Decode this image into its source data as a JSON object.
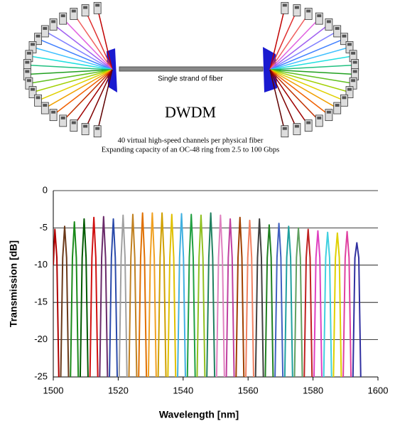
{
  "diagram": {
    "fiber_label": "Single strand of fiber",
    "title": "DWDM",
    "caption_line1": "40 virtual high-speed channels per physical fiber",
    "caption_line2": "Expanding capacity of an OC-48 ring from 2.5 to 100 Gbps"
  },
  "chart_data": {
    "type": "line",
    "x_label": "Wavelength [nm]",
    "y_label": "Transmission [dB]",
    "xlim": [
      1500,
      1600
    ],
    "xticks": [
      1500,
      1520,
      1540,
      1560,
      1580,
      1600
    ],
    "ylim": [
      -25,
      0
    ],
    "yticks": [
      0,
      -5,
      -10,
      -15,
      -20,
      -25
    ],
    "grid": true,
    "series": [
      {
        "color": "#b00000",
        "x": [
          1500,
          1500.5,
          1501.1,
          1501.7
        ],
        "values": [
          -10,
          -5.2,
          -9,
          -25
        ]
      },
      {
        "color": "#6b3a1a",
        "x": [
          1502.3,
          1502.9,
          1503.5,
          1504.1,
          1504.7
        ],
        "values": [
          -25,
          -9,
          -4.8,
          -9,
          -25
        ]
      },
      {
        "color": "#1a8a1a",
        "x": [
          1505.3,
          1505.9,
          1506.5,
          1507.1,
          1507.7
        ],
        "values": [
          -25,
          -9,
          -4.2,
          -9,
          -25
        ]
      },
      {
        "color": "#005a00",
        "x": [
          1508.3,
          1508.9,
          1509.5,
          1510.1,
          1510.7
        ],
        "values": [
          -25,
          -9,
          -3.8,
          -9,
          -25
        ]
      },
      {
        "color": "#d01010",
        "x": [
          1511.3,
          1511.9,
          1512.5,
          1513.1,
          1513.7
        ],
        "values": [
          -25,
          -9,
          -3.6,
          -9,
          -25
        ]
      },
      {
        "color": "#6a2a6a",
        "x": [
          1514.3,
          1514.9,
          1515.5,
          1516.1,
          1516.7
        ],
        "values": [
          -25,
          -9,
          -3.5,
          -9,
          -25
        ]
      },
      {
        "color": "#2a4aaa",
        "x": [
          1517.3,
          1517.9,
          1518.5,
          1519.1,
          1519.7
        ],
        "values": [
          -25,
          -9,
          -3.8,
          -9,
          -25
        ]
      },
      {
        "color": "#a0a0a0",
        "x": [
          1520.3,
          1520.9,
          1521.5,
          1522.1,
          1522.7
        ],
        "values": [
          -25,
          -9,
          -3.3,
          -9,
          -25
        ]
      },
      {
        "color": "#c08020",
        "x": [
          1523.3,
          1523.9,
          1524.5,
          1525.1,
          1525.7
        ],
        "values": [
          -25,
          -9,
          -3.2,
          -9,
          -25
        ]
      },
      {
        "color": "#e07000",
        "x": [
          1526.3,
          1526.9,
          1527.5,
          1528.1,
          1528.7
        ],
        "values": [
          -25,
          -9,
          -3,
          -9,
          -25
        ]
      },
      {
        "color": "#f0a020",
        "x": [
          1529.3,
          1529.9,
          1530.5,
          1531.1,
          1531.7
        ],
        "values": [
          -25,
          -9,
          -3,
          -9,
          -25
        ]
      },
      {
        "color": "#d0a000",
        "x": [
          1532.3,
          1532.9,
          1533.5,
          1534.1,
          1534.7
        ],
        "values": [
          -25,
          -9,
          -3,
          -9,
          -25
        ]
      },
      {
        "color": "#e0c000",
        "x": [
          1535.3,
          1535.9,
          1536.5,
          1537.1,
          1537.7
        ],
        "values": [
          -25,
          -9,
          -3.2,
          -9,
          -25
        ]
      },
      {
        "color": "#40b0e0",
        "x": [
          1538.3,
          1538.9,
          1539.5,
          1540.1,
          1540.7
        ],
        "values": [
          -25,
          -9,
          -3.1,
          -9,
          -25
        ]
      },
      {
        "color": "#20a040",
        "x": [
          1541.3,
          1541.9,
          1542.5,
          1543.1,
          1543.7
        ],
        "values": [
          -25,
          -9,
          -3.2,
          -9,
          -25
        ]
      },
      {
        "color": "#90c020",
        "x": [
          1544.3,
          1544.9,
          1545.5,
          1546.1,
          1546.7
        ],
        "values": [
          -25,
          -9,
          -3.3,
          -9,
          -25
        ]
      },
      {
        "color": "#208060",
        "x": [
          1547.3,
          1547.9,
          1548.5,
          1549.1,
          1549.7
        ],
        "values": [
          -25,
          -9,
          -3,
          -9,
          -25
        ]
      },
      {
        "color": "#e080c0",
        "x": [
          1550.3,
          1550.9,
          1551.5,
          1552.1,
          1552.7
        ],
        "values": [
          -25,
          -9,
          -3.3,
          -9,
          -25
        ]
      },
      {
        "color": "#c040a0",
        "x": [
          1553.3,
          1553.9,
          1554.5,
          1555.1,
          1555.7
        ],
        "values": [
          -25,
          -9,
          -3.8,
          -9,
          -25
        ]
      },
      {
        "color": "#a04000",
        "x": [
          1556.3,
          1556.9,
          1557.5,
          1558.1,
          1558.7
        ],
        "values": [
          -25,
          -9,
          -3.6,
          -9,
          -25
        ]
      },
      {
        "color": "#f08060",
        "x": [
          1559.3,
          1559.9,
          1560.5,
          1561.1,
          1561.7
        ],
        "values": [
          -25,
          -9,
          -4,
          -9,
          -25
        ]
      },
      {
        "color": "#404040",
        "x": [
          1562.3,
          1562.9,
          1563.5,
          1564.1,
          1564.7
        ],
        "values": [
          -25,
          -9,
          -3.8,
          -9,
          -25
        ]
      },
      {
        "color": "#208020",
        "x": [
          1565.3,
          1565.9,
          1566.5,
          1567.1,
          1567.7
        ],
        "values": [
          -25,
          -9,
          -4.6,
          -9,
          -25
        ]
      },
      {
        "color": "#4060c0",
        "x": [
          1568.3,
          1568.9,
          1569.5,
          1570.1,
          1570.7
        ],
        "values": [
          -25,
          -9,
          -4.4,
          -9,
          -25
        ]
      },
      {
        "color": "#20a0a0",
        "x": [
          1571.3,
          1571.9,
          1572.5,
          1573.1,
          1573.7
        ],
        "values": [
          -25,
          -9,
          -4.8,
          -9,
          -25
        ]
      },
      {
        "color": "#60a060",
        "x": [
          1574.3,
          1574.9,
          1575.5,
          1576.1,
          1576.7
        ],
        "values": [
          -25,
          -9,
          -5,
          -9,
          -25
        ]
      },
      {
        "color": "#c02020",
        "x": [
          1577.3,
          1577.9,
          1578.5,
          1579.1,
          1579.7
        ],
        "values": [
          -25,
          -9,
          -5.2,
          -9,
          -25
        ]
      },
      {
        "color": "#e040c0",
        "x": [
          1580.3,
          1580.9,
          1581.5,
          1582.1,
          1582.7
        ],
        "values": [
          -25,
          -9,
          -5.4,
          -9,
          -25
        ]
      },
      {
        "color": "#40d0e0",
        "x": [
          1583.3,
          1583.9,
          1584.5,
          1585.1,
          1585.7
        ],
        "values": [
          -25,
          -9,
          -5.6,
          -9,
          -25
        ]
      },
      {
        "color": "#e0d000",
        "x": [
          1586.3,
          1586.9,
          1587.5,
          1588.1,
          1588.7
        ],
        "values": [
          -25,
          -9,
          -5.7,
          -9,
          -25
        ]
      },
      {
        "color": "#e040a0",
        "x": [
          1589.3,
          1589.9,
          1590.5,
          1591.1,
          1591.7
        ],
        "values": [
          -25,
          -9,
          -5.5,
          -9,
          -25
        ]
      },
      {
        "color": "#3030a0",
        "x": [
          1592.3,
          1592.9,
          1593.5,
          1594.1,
          1594.7
        ],
        "values": [
          -25,
          -9,
          -7,
          -9,
          -25
        ]
      }
    ]
  }
}
